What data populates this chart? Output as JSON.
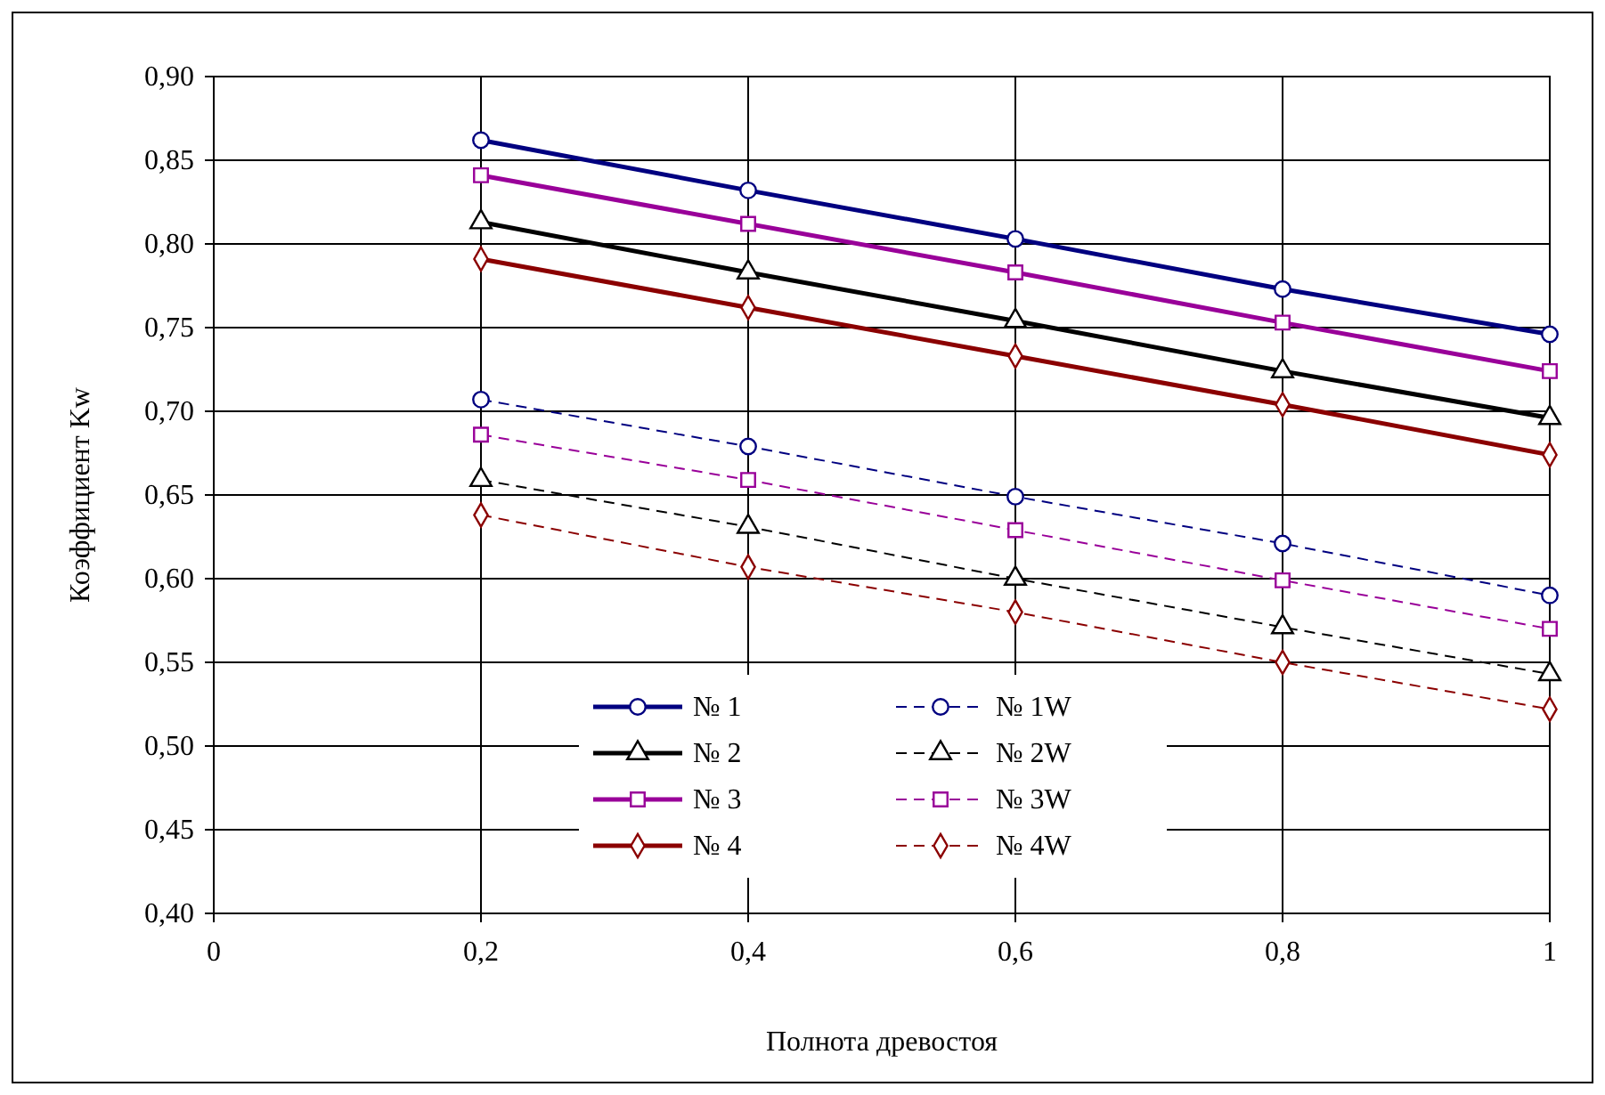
{
  "chart_data": {
    "type": "line",
    "xlabel": "Полнота древостоя",
    "ylabel": "Коэффициент Kw",
    "x": [
      0.2,
      0.4,
      0.6,
      0.8,
      1
    ],
    "xlim": [
      0,
      1
    ],
    "ylim": [
      0.4,
      0.9
    ],
    "xticks": [
      0,
      {
        "value": 0.2,
        "label": "0,2"
      },
      {
        "value": 0.4,
        "label": "0,4"
      },
      {
        "value": 0.6,
        "label": "0,6"
      },
      {
        "value": 0.8,
        "label": "0,8"
      },
      1
    ],
    "yticks": [
      {
        "value": 0.4,
        "label": "0,40"
      },
      {
        "value": 0.45,
        "label": "0,45"
      },
      {
        "value": 0.5,
        "label": "0,50"
      },
      {
        "value": 0.55,
        "label": "0,55"
      },
      {
        "value": 0.6,
        "label": "0,60"
      },
      {
        "value": 0.65,
        "label": "0,65"
      },
      {
        "value": 0.7,
        "label": "0,70"
      },
      {
        "value": 0.75,
        "label": "0,75"
      },
      {
        "value": 0.8,
        "label": "0,80"
      },
      {
        "value": 0.85,
        "label": "0,85"
      },
      {
        "value": 0.9,
        "label": "0,90"
      }
    ],
    "grid": true,
    "legend": "bottom left",
    "series": [
      {
        "name": "№ 1",
        "color": "#000080",
        "marker": "circle",
        "line_style": "solid",
        "values": [
          0.862,
          0.832,
          0.803,
          0.773,
          0.746
        ]
      },
      {
        "name": "№ 2",
        "color": "#000000",
        "marker": "triangle",
        "line_style": "solid",
        "values": [
          0.813,
          0.783,
          0.754,
          0.724,
          0.696
        ]
      },
      {
        "name": "№ 3",
        "color": "#990099",
        "marker": "square",
        "line_style": "solid",
        "values": [
          0.841,
          0.812,
          0.783,
          0.753,
          0.724
        ]
      },
      {
        "name": "№ 4",
        "color": "#8b0000",
        "marker": "diamond",
        "line_style": "solid",
        "values": [
          0.791,
          0.762,
          0.733,
          0.704,
          0.674
        ]
      },
      {
        "name": "№ 1W",
        "color": "#000080",
        "marker": "circle",
        "line_style": "dashed",
        "values": [
          0.707,
          0.679,
          0.649,
          0.621,
          0.59
        ]
      },
      {
        "name": "№ 2W",
        "color": "#000000",
        "marker": "triangle",
        "line_style": "dashed",
        "values": [
          0.659,
          0.631,
          0.6,
          0.571,
          0.543
        ]
      },
      {
        "name": "№ 3W",
        "color": "#990099",
        "marker": "square",
        "line_style": "dashed",
        "values": [
          0.686,
          0.659,
          0.629,
          0.599,
          0.57
        ]
      },
      {
        "name": "№ 4W",
        "color": "#8b0000",
        "marker": "diamond",
        "line_style": "dashed",
        "values": [
          0.638,
          0.607,
          0.58,
          0.55,
          0.522
        ]
      }
    ]
  }
}
